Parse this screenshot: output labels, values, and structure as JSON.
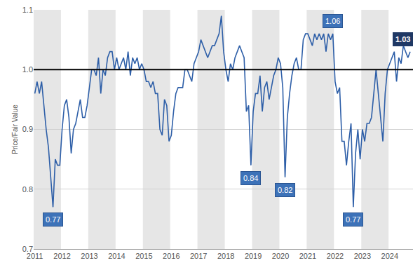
{
  "chart_data": {
    "type": "line",
    "y_label": "Price/Fair Value",
    "categories": [
      "2011",
      null,
      null,
      null,
      null,
      null,
      null,
      null,
      null,
      null,
      null,
      null,
      "2012",
      null,
      null,
      null,
      null,
      null,
      null,
      null,
      null,
      null,
      null,
      null,
      "2013",
      null,
      null,
      null,
      null,
      null,
      null,
      null,
      null,
      null,
      null,
      null,
      "2014",
      null,
      null,
      null,
      null,
      null,
      null,
      null,
      null,
      null,
      null,
      null,
      "2015",
      null,
      null,
      null,
      null,
      null,
      null,
      null,
      null,
      null,
      null,
      null,
      "2016",
      null,
      null,
      null,
      null,
      null,
      null,
      null,
      null,
      null,
      null,
      null,
      "2017",
      null,
      null,
      null,
      null,
      null,
      null,
      null,
      null,
      null,
      null,
      null,
      "2018",
      null,
      null,
      null,
      null,
      null,
      null,
      null,
      null,
      null,
      null,
      null,
      "2019",
      null,
      null,
      null,
      null,
      null,
      null,
      null,
      null,
      null,
      null,
      null,
      "2020",
      null,
      null,
      null,
      null,
      null,
      null,
      null,
      null,
      null,
      null,
      null,
      "2021",
      null,
      null,
      null,
      null,
      null,
      null,
      null,
      null,
      null,
      null,
      null,
      "2022",
      null,
      null,
      null,
      null,
      null,
      null,
      null,
      null,
      null,
      null,
      null,
      "2023",
      null,
      null,
      null,
      null,
      null,
      null,
      null,
      null,
      null,
      null,
      null,
      "2024",
      null,
      null,
      null,
      null,
      null,
      null,
      null,
      null,
      null
    ],
    "values": [
      0.96,
      0.98,
      0.96,
      0.98,
      0.94,
      0.9,
      0.87,
      0.82,
      0.77,
      0.85,
      0.84,
      0.84,
      0.9,
      0.94,
      0.95,
      0.92,
      0.86,
      0.9,
      0.91,
      0.93,
      0.95,
      0.92,
      0.92,
      0.94,
      0.97,
      1.0,
      1.0,
      0.99,
      1.02,
      0.96,
      1.0,
      0.99,
      1.02,
      1.03,
      1.03,
      1.0,
      1.02,
      1.0,
      1.01,
      1.02,
      1.0,
      1.03,
      0.99,
      1.02,
      1.01,
      1.02,
      1.0,
      1.01,
      1.0,
      0.98,
      0.98,
      0.97,
      0.98,
      0.96,
      0.96,
      0.9,
      0.89,
      0.95,
      0.94,
      0.88,
      0.89,
      0.93,
      0.96,
      0.97,
      0.97,
      0.97,
      1.0,
      1.0,
      0.99,
      0.98,
      1.01,
      1.02,
      1.03,
      1.05,
      1.04,
      1.03,
      1.02,
      1.03,
      1.04,
      1.04,
      1.05,
      1.06,
      1.09,
      1.03,
      1.0,
      0.98,
      1.01,
      1.0,
      1.02,
      1.03,
      1.04,
      1.03,
      1.02,
      0.93,
      0.94,
      0.84,
      0.93,
      0.96,
      0.96,
      0.99,
      0.93,
      0.97,
      0.98,
      0.95,
      0.97,
      0.99,
      1.0,
      1.02,
      1.01,
      0.97,
      0.82,
      0.92,
      0.96,
      0.99,
      1.01,
      1.02,
      1.0,
      1.0,
      1.05,
      1.06,
      1.06,
      1.05,
      1.04,
      1.06,
      1.05,
      1.06,
      1.05,
      1.06,
      1.03,
      1.06,
      1.05,
      1.06,
      0.98,
      0.96,
      0.97,
      0.88,
      0.88,
      0.84,
      0.88,
      0.91,
      0.77,
      0.86,
      0.9,
      0.85,
      0.9,
      0.88,
      0.91,
      0.91,
      0.92,
      0.96,
      1.0,
      0.96,
      0.92,
      0.88,
      0.96,
      1.0,
      1.01,
      1.02,
      1.03,
      0.98,
      1.02,
      1.01,
      1.04,
      1.03,
      1.02,
      1.03
    ],
    "color": "#2e5fa8",
    "ylim": [
      0.7,
      1.1
    ],
    "yticks": [
      0.7,
      0.8,
      0.9,
      {
        "value": 1,
        "label": "1.0"
      },
      1.1
    ],
    "reference_value": 1,
    "grid": true,
    "annotations": [
      {
        "text": "0.77",
        "index": 8
      },
      {
        "text": "0.84",
        "index": 95
      },
      {
        "text": "0.82",
        "index": 110
      },
      {
        "text": "1.06",
        "index": 131
      },
      {
        "text": "0.77",
        "index": 140
      },
      {
        "text": "1.03",
        "index": 165
      }
    ]
  }
}
